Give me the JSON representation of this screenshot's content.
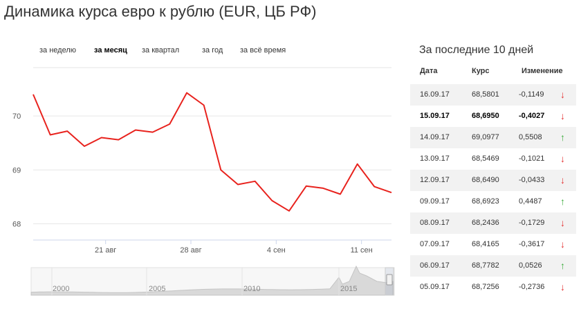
{
  "page": {
    "title": "Динамика курса евро к рублю (EUR, ЦБ РФ)"
  },
  "period_tabs": [
    {
      "label": "за неделю",
      "active": false
    },
    {
      "label": "за месяц",
      "active": true
    },
    {
      "label": "за квартал",
      "active": false
    },
    {
      "label": "за год",
      "active": false
    },
    {
      "label": "за всё время",
      "active": false
    }
  ],
  "chart_data": {
    "type": "line",
    "series": [
      {
        "color": "#e8221d",
        "values": [
          70.4,
          69.65,
          69.72,
          69.44,
          69.6,
          69.56,
          69.74,
          69.7,
          69.85,
          70.43,
          70.2,
          69.0,
          68.73,
          68.79,
          68.43,
          68.24,
          68.7,
          68.66,
          68.55,
          69.11,
          68.69,
          68.58
        ]
      }
    ],
    "x_tick_labels": [
      "21 авг",
      "28 авг",
      "4 сен",
      "11 сен"
    ],
    "y_tick_labels": [
      "70",
      "69",
      "68"
    ],
    "ylim": [
      67.7,
      71.0
    ],
    "grid": true
  },
  "navigator": {
    "year_labels": [
      "2000",
      "2005",
      "2010",
      "2015"
    ]
  },
  "rates_table": {
    "title": "За последние 10 дней",
    "headers": {
      "date": "Дата",
      "rate": "Курс",
      "change": "Изменение"
    },
    "rows": [
      {
        "date": "16.09.17",
        "rate": "68,5801",
        "change": "-0,1149",
        "direction": "down"
      },
      {
        "date": "15.09.17",
        "rate": "68,6950",
        "change": "-0,4027",
        "direction": "down"
      },
      {
        "date": "14.09.17",
        "rate": "69,0977",
        "change": "0,5508",
        "direction": "up"
      },
      {
        "date": "13.09.17",
        "rate": "68,5469",
        "change": "-0,1021",
        "direction": "down"
      },
      {
        "date": "12.09.17",
        "rate": "68,6490",
        "change": "-0,0433",
        "direction": "down"
      },
      {
        "date": "09.09.17",
        "rate": "68,6923",
        "change": "0,4487",
        "direction": "up"
      },
      {
        "date": "08.09.17",
        "rate": "68,2436",
        "change": "-0,1729",
        "direction": "down"
      },
      {
        "date": "07.09.17",
        "rate": "68,4165",
        "change": "-0,3617",
        "direction": "down"
      },
      {
        "date": "06.09.17",
        "rate": "68,7782",
        "change": "0,0526",
        "direction": "up"
      },
      {
        "date": "05.09.17",
        "rate": "68,7256",
        "change": "-0,2736",
        "direction": "down"
      }
    ]
  },
  "arrows": {
    "down": "↓",
    "up": "↑"
  }
}
